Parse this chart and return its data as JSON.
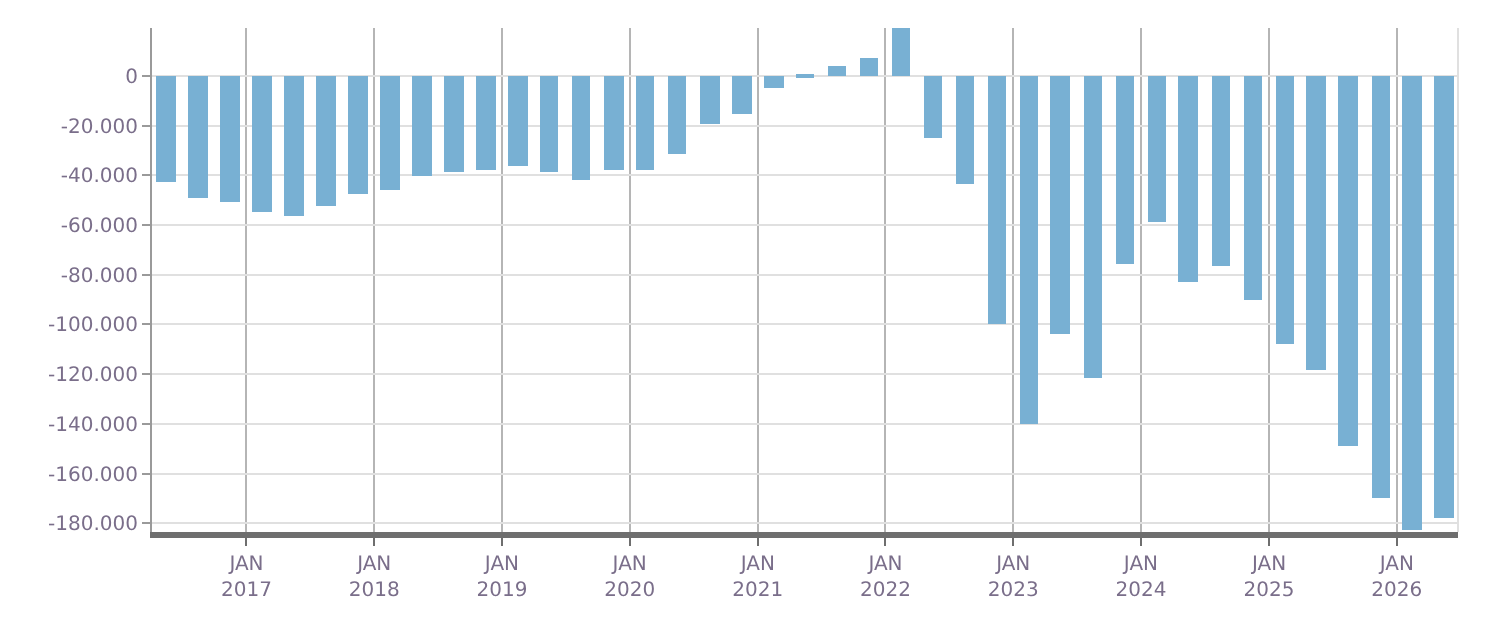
{
  "chart_data": {
    "type": "bar",
    "color": "#78b0d3",
    "x": [
      "2016-05-16",
      "2016-08-16",
      "2016-11-16",
      "2017-02-15",
      "2017-05-16",
      "2017-08-16",
      "2017-11-16",
      "2018-02-15",
      "2018-05-16",
      "2018-08-16",
      "2018-11-16",
      "2019-02-15",
      "2019-05-16",
      "2019-08-16",
      "2019-11-16",
      "2020-02-15",
      "2020-05-16",
      "2020-08-16",
      "2020-11-16",
      "2021-02-15",
      "2021-05-16",
      "2021-08-16",
      "2021-11-16",
      "2022-02-15",
      "2022-05-16",
      "2022-08-16",
      "2022-11-16",
      "2023-02-15",
      "2023-05-16",
      "2023-08-16",
      "2023-11-16",
      "2024-02-15",
      "2024-05-16",
      "2024-08-16",
      "2024-11-16",
      "2025-02-15",
      "2025-05-16",
      "2025-08-16",
      "2025-11-16",
      "2026-02-15",
      "2026-05-16"
    ],
    "values": [
      -43000,
      -49500,
      -51000,
      -55000,
      -56500,
      -52500,
      -47500,
      -46000,
      -40500,
      -39000,
      -38000,
      -36000,
      -39000,
      -42000,
      -37500,
      -37500,
      -31500,
      -19500,
      -15000,
      -5000,
      -1000,
      4000,
      7000,
      19000,
      -25000,
      -43500,
      -100000,
      -140000,
      -103500,
      -121500,
      -76000,
      -58500,
      -83000,
      -76500,
      -90000,
      -107500,
      -118000,
      -149000,
      -170000,
      -182500,
      -177500
    ],
    "xlim": [
      "2016-04-06",
      "2026-06-25"
    ],
    "xticks": [
      {
        "value": "2017-01-01",
        "label": "JAN\n2017"
      },
      {
        "value": "2018-01-01",
        "label": "JAN\n2018"
      },
      {
        "value": "2019-01-01",
        "label": "JAN\n2019"
      },
      {
        "value": "2020-01-01",
        "label": "JAN\n2020"
      },
      {
        "value": "2021-01-01",
        "label": "JAN\n2021"
      },
      {
        "value": "2022-01-01",
        "label": "JAN\n2022"
      },
      {
        "value": "2023-01-01",
        "label": "JAN\n2023"
      },
      {
        "value": "2024-01-01",
        "label": "JAN\n2024"
      },
      {
        "value": "2025-01-01",
        "label": "JAN\n2025"
      },
      {
        "value": "2026-01-01",
        "label": "JAN\n2026"
      }
    ],
    "ylim": [
      -183500,
      19250
    ],
    "yticks": [
      0,
      {
        "value": -20000,
        "label": "-20.000"
      },
      {
        "value": -40000,
        "label": "-40.000"
      },
      {
        "value": -60000,
        "label": "-60.000"
      },
      {
        "value": -80000,
        "label": "-80.000"
      },
      {
        "value": -100000,
        "label": "-100.000"
      },
      {
        "value": -120000,
        "label": "-120.000"
      },
      {
        "value": -140000,
        "label": "-140.000"
      },
      {
        "value": -160000,
        "label": "-160.000"
      },
      {
        "value": -180000,
        "label": "-180.000"
      }
    ],
    "grid": true
  }
}
